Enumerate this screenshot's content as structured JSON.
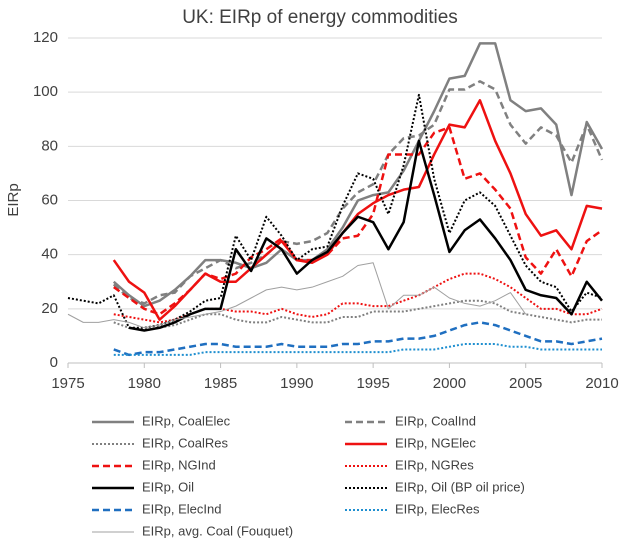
{
  "chart_data": {
    "type": "line",
    "title": "UK: EIRp of energy commodities",
    "y_label": "EIRp",
    "x": [
      1975,
      1976,
      1977,
      1978,
      1979,
      1980,
      1981,
      1982,
      1983,
      1984,
      1985,
      1986,
      1987,
      1988,
      1989,
      1990,
      1991,
      1992,
      1993,
      1994,
      1995,
      1996,
      1997,
      1998,
      1999,
      2000,
      2001,
      2002,
      2003,
      2004,
      2005,
      2006,
      2007,
      2008,
      2009,
      2010
    ],
    "xlim": [
      1975,
      2010
    ],
    "xticks": [
      1975,
      1980,
      1985,
      1990,
      1995,
      2000,
      2005,
      2010
    ],
    "ylim": [
      0,
      120
    ],
    "yticks": [
      0,
      20,
      40,
      60,
      80,
      100,
      120
    ],
    "grid": true,
    "series": [
      {
        "name": "EIRp, CoalElec",
        "color": "#808080",
        "style": "solid",
        "width": 2.5,
        "values": [
          null,
          null,
          null,
          30,
          25,
          21,
          23,
          27,
          32,
          38,
          38,
          37,
          35,
          37,
          42,
          38,
          38,
          42,
          50,
          60,
          62,
          63,
          71,
          82,
          93,
          105,
          106,
          118,
          118,
          97,
          93,
          94,
          88,
          62,
          89,
          79
        ]
      },
      {
        "name": "EIRp, CoalInd",
        "color": "#808080",
        "style": "dashed",
        "width": 2.5,
        "values": [
          null,
          null,
          null,
          29,
          24,
          22,
          25,
          26,
          32,
          35,
          38,
          35,
          37,
          40,
          45,
          44,
          45,
          48,
          57,
          63,
          66,
          77,
          83,
          84,
          88,
          101,
          101,
          104,
          101,
          88,
          81,
          87,
          84,
          74,
          88,
          75
        ]
      },
      {
        "name": "EIRp, CoalRes",
        "color": "#808080",
        "style": "dotted",
        "width": 2,
        "values": [
          null,
          null,
          null,
          15,
          13,
          12,
          13,
          14,
          16,
          18,
          18,
          16,
          15,
          15,
          17,
          16,
          15,
          15,
          17,
          17,
          19,
          19,
          19,
          20,
          21,
          22,
          23,
          23,
          22,
          19,
          18,
          17,
          16,
          15,
          16,
          16
        ]
      },
      {
        "name": "EIRp, NGElec",
        "color": "#ee1111",
        "style": "solid",
        "width": 2.5,
        "values": [
          null,
          null,
          null,
          38,
          30,
          26,
          16,
          21,
          27,
          33,
          30,
          30,
          35,
          40,
          45,
          38,
          37,
          40,
          48,
          55,
          59,
          62,
          64,
          65,
          77,
          88,
          87,
          97,
          82,
          70,
          55,
          47,
          49,
          42,
          58,
          57
        ]
      },
      {
        "name": "EIRp, NGInd",
        "color": "#ee1111",
        "style": "dashed",
        "width": 2.5,
        "values": [
          null,
          null,
          null,
          28,
          24,
          20,
          18,
          22,
          27,
          33,
          31,
          33,
          39,
          42,
          46,
          38,
          38,
          40,
          46,
          47,
          55,
          77,
          77,
          77,
          85,
          87,
          68,
          70,
          64,
          57,
          39,
          33,
          42,
          32,
          45,
          49
        ]
      },
      {
        "name": "EIRp, NGRes",
        "color": "#ee1111",
        "style": "dotted",
        "width": 2,
        "values": [
          null,
          null,
          null,
          18,
          17,
          16,
          15,
          16,
          18,
          20,
          20,
          19,
          19,
          18,
          20,
          18,
          17,
          18,
          22,
          22,
          21,
          21,
          23,
          25,
          28,
          31,
          33,
          33,
          31,
          28,
          24,
          20,
          20,
          18,
          18,
          20
        ]
      },
      {
        "name": "EIRp, Oil",
        "color": "#000000",
        "style": "solid",
        "width": 2.5,
        "values": [
          null,
          null,
          null,
          null,
          13,
          12,
          13,
          15,
          18,
          20,
          20,
          42,
          34,
          46,
          42,
          33,
          38,
          41,
          48,
          54,
          52,
          42,
          52,
          82,
          62,
          41,
          49,
          53,
          46,
          38,
          27,
          25,
          24,
          18,
          30,
          23
        ]
      },
      {
        "name": "EIRp, Oil (BP oil price)",
        "color": "#000000",
        "style": "dotted",
        "width": 2,
        "values": [
          24,
          23,
          22,
          25,
          13,
          13,
          14,
          16,
          19,
          23,
          24,
          47,
          38,
          54,
          47,
          38,
          42,
          43,
          58,
          70,
          68,
          55,
          73,
          99,
          68,
          48,
          60,
          63,
          58,
          47,
          36,
          30,
          28,
          19,
          26,
          24
        ]
      },
      {
        "name": "EIRp, ElecInd",
        "color": "#1f6fc0",
        "style": "dashed",
        "width": 2.5,
        "values": [
          null,
          null,
          null,
          5,
          3,
          4,
          4,
          5,
          6,
          7,
          7,
          6,
          6,
          6,
          7,
          6,
          6,
          6,
          7,
          7,
          8,
          8,
          9,
          9,
          10,
          12,
          14,
          15,
          14,
          12,
          10,
          8,
          8,
          7,
          8,
          9
        ]
      },
      {
        "name": "EIRp, ElecRes",
        "color": "#1f8fd0",
        "style": "dotted",
        "width": 2,
        "values": [
          null,
          null,
          null,
          3,
          3,
          3,
          3,
          3,
          3,
          4,
          4,
          4,
          4,
          4,
          4,
          4,
          4,
          4,
          4,
          4,
          4,
          4,
          5,
          5,
          5,
          6,
          7,
          7,
          7,
          6,
          6,
          5,
          5,
          5,
          5,
          5
        ]
      },
      {
        "name": "EIRp, avg. Coal (Fouquet)",
        "color": "#a0a0a0",
        "style": "solid",
        "width": 1,
        "values": [
          18,
          15,
          15,
          16,
          15,
          13,
          14,
          16,
          17,
          18,
          19,
          21,
          24,
          27,
          28,
          27,
          28,
          30,
          32,
          36,
          37,
          20,
          25,
          25,
          28,
          24,
          22,
          21,
          23,
          26,
          18,
          null,
          null,
          null,
          null,
          null
        ]
      }
    ]
  }
}
